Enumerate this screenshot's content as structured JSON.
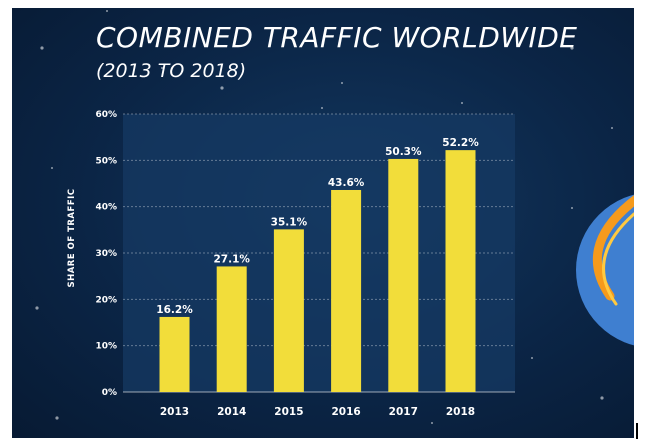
{
  "header": {
    "title": "COMBINED TRAFFIC WORLDWIDE",
    "subtitle": "(2013 TO 2018)"
  },
  "colors": {
    "background": "#0b2546",
    "bar": "#f2dd3a",
    "text": "#ffffff",
    "globe": "#3f7fd0",
    "orbit": "#f59a1c"
  },
  "chart_data": {
    "type": "bar",
    "title": "COMBINED TRAFFIC WORLDWIDE",
    "subtitle": "(2013 TO 2018)",
    "xlabel": "",
    "ylabel": "SHARE OF TRAFFIC",
    "categories": [
      "2013",
      "2014",
      "2015",
      "2016",
      "2017",
      "2018"
    ],
    "values": [
      16.2,
      27.1,
      35.1,
      43.6,
      50.3,
      52.2
    ],
    "data_labels": [
      "16.2%",
      "27.1%",
      "35.1%",
      "43.6%",
      "50.3%",
      "52.2%"
    ],
    "ylim": [
      0,
      60
    ],
    "yticks": [
      0,
      10,
      20,
      30,
      40,
      50,
      60
    ],
    "ytick_labels": [
      "0%",
      "10%",
      "20%",
      "30%",
      "40%",
      "50%",
      "60%"
    ],
    "grid": true,
    "legend": "none"
  }
}
